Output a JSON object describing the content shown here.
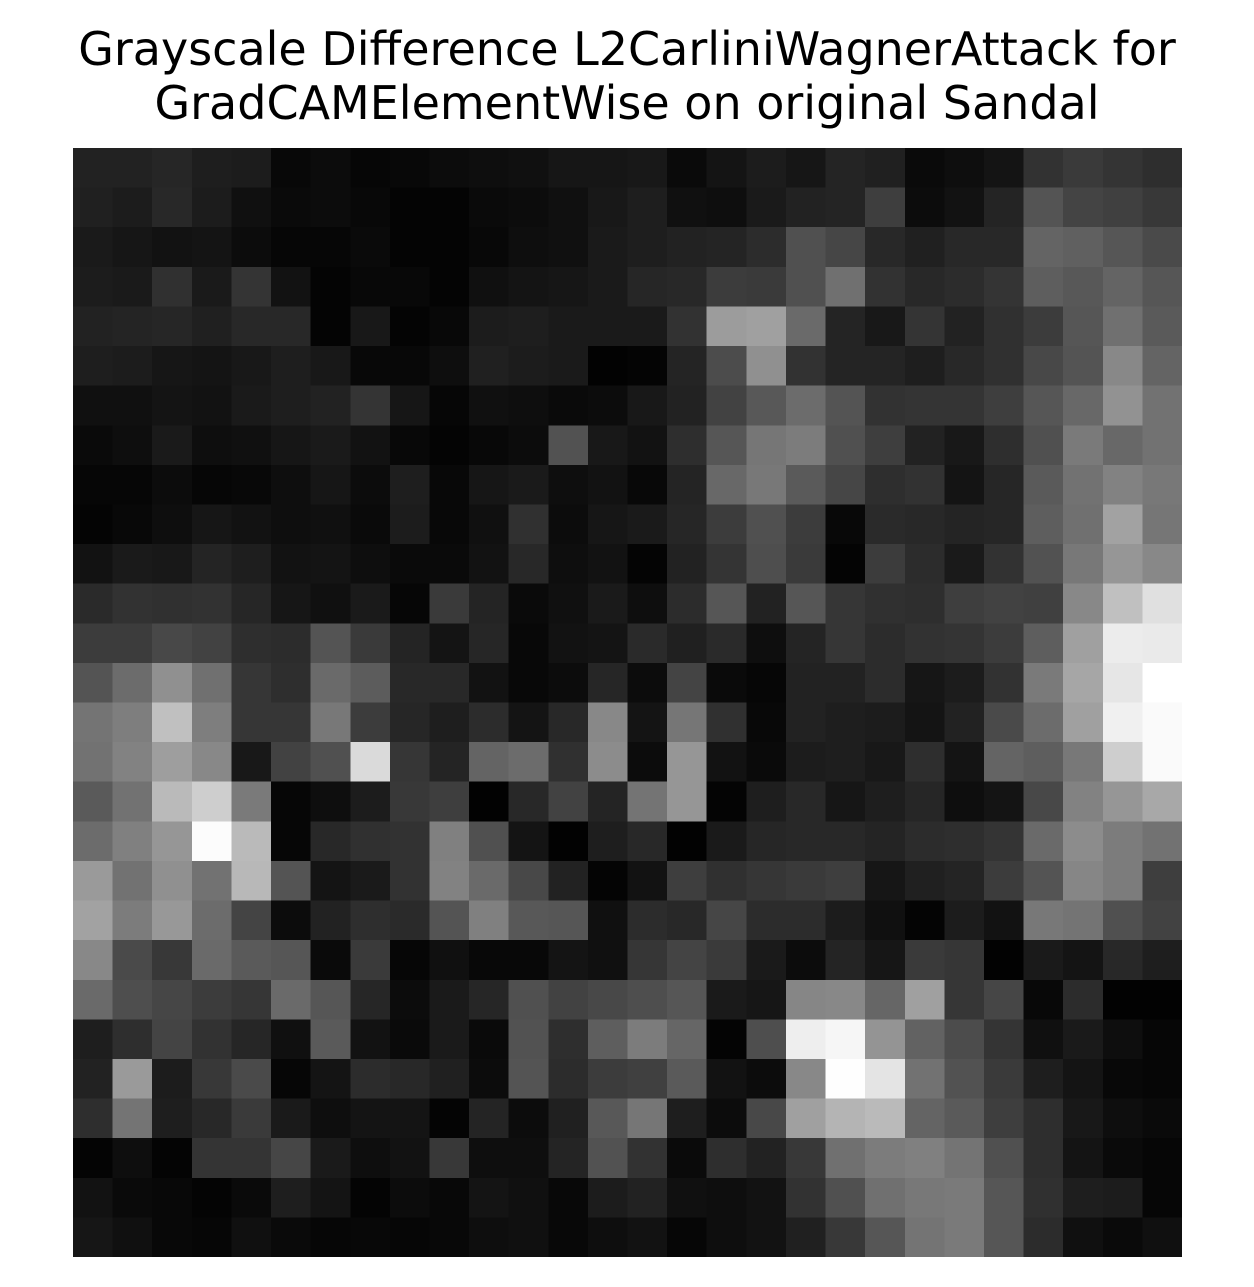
{
  "title_lines": [
    "Grayscale Difference L2CarliniWagnerAttack for",
    "GradCAMElementWise on original Sandal"
  ],
  "chart_data": {
    "type": "heatmap",
    "title": "Grayscale Difference L2CarliniWagnerAttack for GradCAMElementWise on original Sandal",
    "colormap": "gray",
    "axes_visible": false,
    "value_range": [
      0,
      255
    ],
    "rows": 28,
    "cols": 28,
    "values": [
      [
        34,
        34,
        38,
        30,
        28,
        8,
        12,
        6,
        8,
        12,
        14,
        16,
        22,
        22,
        24,
        10,
        20,
        28,
        22,
        36,
        32,
        10,
        14,
        20,
        50,
        58,
        52,
        46
      ],
      [
        32,
        28,
        40,
        28,
        16,
        10,
        12,
        8,
        4,
        4,
        10,
        12,
        16,
        24,
        30,
        16,
        14,
        26,
        34,
        36,
        62,
        12,
        18,
        36,
        84,
        68,
        64,
        56
      ],
      [
        26,
        22,
        18,
        20,
        12,
        6,
        6,
        10,
        4,
        4,
        8,
        14,
        16,
        26,
        30,
        34,
        36,
        44,
        80,
        70,
        40,
        32,
        40,
        40,
        100,
        96,
        86,
        74
      ],
      [
        28,
        26,
        48,
        26,
        52,
        18,
        4,
        8,
        8,
        4,
        16,
        20,
        22,
        26,
        38,
        40,
        60,
        58,
        80,
        112,
        50,
        40,
        44,
        52,
        94,
        88,
        100,
        86
      ],
      [
        34,
        36,
        38,
        32,
        40,
        40,
        4,
        24,
        4,
        8,
        28,
        30,
        26,
        26,
        26,
        50,
        156,
        160,
        106,
        36,
        24,
        52,
        34,
        48,
        60,
        86,
        112,
        90
      ],
      [
        30,
        28,
        22,
        20,
        24,
        30,
        24,
        8,
        8,
        14,
        32,
        28,
        26,
        2,
        4,
        36,
        76,
        144,
        50,
        36,
        36,
        30,
        40,
        48,
        72,
        84,
        136,
        100
      ],
      [
        16,
        16,
        20,
        18,
        26,
        30,
        34,
        52,
        22,
        6,
        16,
        14,
        10,
        12,
        24,
        34,
        66,
        88,
        108,
        84,
        50,
        52,
        52,
        62,
        86,
        104,
        146,
        114
      ],
      [
        10,
        14,
        26,
        14,
        16,
        22,
        26,
        18,
        8,
        4,
        8,
        12,
        82,
        24,
        18,
        46,
        86,
        118,
        124,
        80,
        62,
        34,
        24,
        46,
        80,
        122,
        104,
        114
      ],
      [
        6,
        6,
        12,
        6,
        8,
        14,
        22,
        12,
        30,
        8,
        22,
        26,
        14,
        18,
        8,
        36,
        104,
        120,
        90,
        70,
        46,
        50,
        20,
        38,
        90,
        114,
        130,
        120
      ],
      [
        4,
        8,
        14,
        22,
        18,
        14,
        16,
        10,
        28,
        8,
        16,
        48,
        12,
        22,
        26,
        38,
        60,
        80,
        60,
        8,
        42,
        40,
        36,
        38,
        94,
        112,
        162,
        118
      ],
      [
        18,
        26,
        24,
        36,
        30,
        18,
        20,
        14,
        10,
        10,
        18,
        40,
        14,
        18,
        4,
        34,
        52,
        78,
        58,
        4,
        60,
        44,
        26,
        50,
        82,
        120,
        150,
        136
      ],
      [
        42,
        50,
        48,
        50,
        38,
        22,
        16,
        26,
        6,
        58,
        36,
        10,
        16,
        26,
        14,
        44,
        86,
        34,
        86,
        54,
        48,
        46,
        62,
        66,
        64,
        136,
        192,
        224
      ],
      [
        60,
        60,
        72,
        66,
        46,
        44,
        84,
        58,
        36,
        20,
        38,
        8,
        18,
        20,
        42,
        32,
        42,
        14,
        36,
        54,
        44,
        50,
        52,
        60,
        94,
        160,
        236,
        234
      ],
      [
        84,
        108,
        144,
        112,
        54,
        46,
        106,
        92,
        40,
        40,
        18,
        8,
        12,
        38,
        12,
        68,
        10,
        6,
        34,
        34,
        44,
        22,
        28,
        50,
        122,
        166,
        230,
        255
      ],
      [
        116,
        126,
        192,
        126,
        54,
        54,
        120,
        60,
        38,
        30,
        44,
        20,
        40,
        136,
        20,
        118,
        48,
        8,
        34,
        30,
        28,
        20,
        34,
        74,
        108,
        160,
        240,
        250
      ],
      [
        114,
        130,
        158,
        136,
        24,
        66,
        80,
        218,
        54,
        36,
        100,
        108,
        48,
        140,
        12,
        150,
        18,
        10,
        28,
        30,
        24,
        46,
        20,
        100,
        94,
        120,
        206,
        250
      ],
      [
        90,
        114,
        186,
        206,
        122,
        6,
        14,
        28,
        56,
        62,
        2,
        40,
        66,
        36,
        116,
        150,
        4,
        30,
        40,
        22,
        30,
        38,
        14,
        20,
        72,
        130,
        150,
        168
      ],
      [
        108,
        128,
        150,
        252,
        186,
        6,
        40,
        48,
        50,
        128,
        80,
        20,
        2,
        30,
        40,
        2,
        26,
        38,
        40,
        40,
        36,
        44,
        46,
        52,
        106,
        140,
        124,
        114
      ],
      [
        154,
        114,
        144,
        114,
        184,
        84,
        20,
        26,
        50,
        130,
        106,
        72,
        34,
        4,
        18,
        62,
        48,
        54,
        58,
        62,
        22,
        32,
        36,
        60,
        84,
        134,
        124,
        62
      ],
      [
        162,
        124,
        152,
        108,
        68,
        12,
        34,
        46,
        42,
        84,
        128,
        88,
        86,
        16,
        44,
        40,
        70,
        44,
        44,
        28,
        16,
        4,
        28,
        18,
        120,
        116,
        80,
        66
      ],
      [
        136,
        74,
        56,
        106,
        90,
        86,
        10,
        58,
        6,
        16,
        8,
        8,
        20,
        16,
        54,
        68,
        58,
        26,
        12,
        36,
        22,
        58,
        54,
        2,
        26,
        20,
        40,
        30
      ],
      [
        106,
        78,
        70,
        60,
        54,
        106,
        86,
        38,
        12,
        26,
        38,
        80,
        66,
        72,
        78,
        86,
        26,
        22,
        134,
        136,
        102,
        160,
        54,
        70,
        8,
        44,
        2,
        2
      ],
      [
        30,
        46,
        68,
        50,
        38,
        16,
        90,
        18,
        10,
        26,
        10,
        82,
        46,
        94,
        124,
        102,
        4,
        78,
        238,
        246,
        148,
        98,
        76,
        52,
        16,
        26,
        14,
        6
      ],
      [
        34,
        154,
        28,
        56,
        74,
        6,
        20,
        44,
        40,
        32,
        12,
        84,
        44,
        60,
        64,
        90,
        18,
        12,
        136,
        254,
        228,
        114,
        82,
        58,
        30,
        20,
        8,
        6
      ],
      [
        46,
        116,
        30,
        40,
        58,
        26,
        14,
        20,
        20,
        4,
        36,
        12,
        32,
        88,
        118,
        30,
        12,
        72,
        160,
        180,
        186,
        100,
        90,
        62,
        46,
        24,
        14,
        10
      ],
      [
        4,
        14,
        4,
        52,
        52,
        70,
        26,
        14,
        18,
        56,
        14,
        14,
        36,
        82,
        50,
        10,
        46,
        34,
        56,
        112,
        124,
        128,
        116,
        80,
        46,
        20,
        10,
        6
      ],
      [
        18,
        10,
        8,
        4,
        10,
        30,
        20,
        4,
        12,
        8,
        20,
        16,
        8,
        28,
        34,
        16,
        14,
        18,
        50,
        80,
        112,
        120,
        122,
        86,
        48,
        30,
        28,
        6
      ],
      [
        22,
        16,
        8,
        6,
        16,
        10,
        6,
        8,
        6,
        8,
        14,
        16,
        8,
        14,
        18,
        6,
        14,
        18,
        32,
        56,
        86,
        116,
        122,
        86,
        44,
        16,
        10,
        16
      ]
    ]
  }
}
